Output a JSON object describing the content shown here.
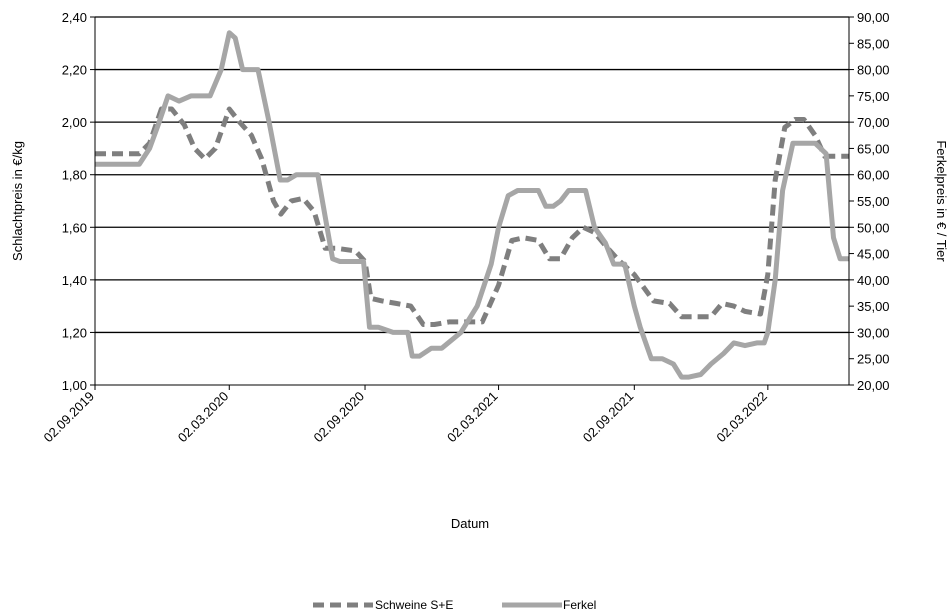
{
  "chart_data": {
    "type": "line",
    "title": "",
    "xlabel": "Datum",
    "ylabel_left": "Schlachtpreis in €/kg",
    "ylabel_right": "Ferkelpreis in € / Tier",
    "x_ticks": [
      "02.09.2019",
      "02.03.2020",
      "02.09.2020",
      "02.03.2021",
      "02.09.2021",
      "02.03.2022"
    ],
    "x_range": [
      "2019-09-02",
      "2022-06-20"
    ],
    "y_left": {
      "range": [
        1.0,
        2.4
      ],
      "ticks": [
        "1,00",
        "1,20",
        "1,40",
        "1,60",
        "1,80",
        "2,00",
        "2,20",
        "2,40"
      ],
      "tick_values": [
        1.0,
        1.2,
        1.4,
        1.6,
        1.8,
        2.0,
        2.2,
        2.4
      ]
    },
    "y_right": {
      "range": [
        20,
        90
      ],
      "ticks": [
        "20,00",
        "25,00",
        "30,00",
        "35,00",
        "40,00",
        "45,00",
        "50,00",
        "55,00",
        "60,00",
        "65,00",
        "70,00",
        "75,00",
        "80,00",
        "85,00",
        "90,00"
      ],
      "tick_values": [
        20,
        25,
        30,
        35,
        40,
        45,
        50,
        55,
        60,
        65,
        70,
        75,
        80,
        85,
        90
      ]
    },
    "grid": "horizontal",
    "legend_position": "bottom",
    "series": [
      {
        "name": "Schweine S+E",
        "axis": "left",
        "color": "#7f7f7f",
        "style": "dashed",
        "points": [
          [
            "2019-09-02",
            1.88
          ],
          [
            "2019-11-01",
            1.88
          ],
          [
            "2019-11-15",
            1.92
          ],
          [
            "2019-12-01",
            2.05
          ],
          [
            "2019-12-15",
            2.05
          ],
          [
            "2020-01-01",
            1.99
          ],
          [
            "2020-01-15",
            1.9
          ],
          [
            "2020-01-29",
            1.86
          ],
          [
            "2020-02-12",
            1.9
          ],
          [
            "2020-03-02",
            2.05
          ],
          [
            "2020-03-16",
            2.0
          ],
          [
            "2020-04-01",
            1.95
          ],
          [
            "2020-04-15",
            1.86
          ],
          [
            "2020-05-01",
            1.7
          ],
          [
            "2020-05-11",
            1.65
          ],
          [
            "2020-05-25",
            1.7
          ],
          [
            "2020-06-10",
            1.71
          ],
          [
            "2020-06-25",
            1.66
          ],
          [
            "2020-07-10",
            1.52
          ],
          [
            "2020-07-25",
            1.52
          ],
          [
            "2020-08-20",
            1.51
          ],
          [
            "2020-09-02",
            1.47
          ],
          [
            "2020-09-10",
            1.33
          ],
          [
            "2020-09-25",
            1.32
          ],
          [
            "2020-10-15",
            1.31
          ],
          [
            "2020-11-03",
            1.3
          ],
          [
            "2020-11-20",
            1.23
          ],
          [
            "2020-12-05",
            1.23
          ],
          [
            "2020-12-25",
            1.24
          ],
          [
            "2021-01-15",
            1.24
          ],
          [
            "2021-02-08",
            1.24
          ],
          [
            "2021-03-02",
            1.38
          ],
          [
            "2021-03-20",
            1.55
          ],
          [
            "2021-04-05",
            1.56
          ],
          [
            "2021-04-25",
            1.55
          ],
          [
            "2021-05-10",
            1.48
          ],
          [
            "2021-05-25",
            1.48
          ],
          [
            "2021-06-10",
            1.56
          ],
          [
            "2021-06-25",
            1.6
          ],
          [
            "2021-07-10",
            1.58
          ],
          [
            "2021-07-25",
            1.53
          ],
          [
            "2021-08-10",
            1.48
          ],
          [
            "2021-08-25",
            1.44
          ],
          [
            "2021-09-02",
            1.42
          ],
          [
            "2021-09-15",
            1.37
          ],
          [
            "2021-09-28",
            1.32
          ],
          [
            "2021-10-20",
            1.31
          ],
          [
            "2021-11-05",
            1.26
          ],
          [
            "2021-11-25",
            1.26
          ],
          [
            "2021-12-15",
            1.26
          ],
          [
            "2021-12-30",
            1.31
          ],
          [
            "2022-01-15",
            1.3
          ],
          [
            "2022-01-30",
            1.28
          ],
          [
            "2022-02-20",
            1.27
          ],
          [
            "2022-03-02",
            1.42
          ],
          [
            "2022-03-12",
            1.78
          ],
          [
            "2022-03-25",
            1.98
          ],
          [
            "2022-04-08",
            2.01
          ],
          [
            "2022-04-20",
            2.01
          ],
          [
            "2022-05-05",
            1.95
          ],
          [
            "2022-05-18",
            1.87
          ],
          [
            "2022-06-02",
            1.87
          ],
          [
            "2022-06-20",
            1.87
          ]
        ]
      },
      {
        "name": "Ferkel",
        "axis": "right",
        "color": "#a6a6a6",
        "style": "solid",
        "points": [
          [
            "2019-09-02",
            62
          ],
          [
            "2019-10-15",
            62
          ],
          [
            "2019-11-01",
            62
          ],
          [
            "2019-11-15",
            65
          ],
          [
            "2019-11-28",
            70
          ],
          [
            "2019-12-10",
            75
          ],
          [
            "2019-12-25",
            74
          ],
          [
            "2020-01-10",
            75
          ],
          [
            "2020-02-05",
            75
          ],
          [
            "2020-02-20",
            80
          ],
          [
            "2020-03-02",
            87
          ],
          [
            "2020-03-10",
            86
          ],
          [
            "2020-03-20",
            80
          ],
          [
            "2020-03-30",
            80
          ],
          [
            "2020-04-10",
            80
          ],
          [
            "2020-04-25",
            70
          ],
          [
            "2020-05-10",
            59
          ],
          [
            "2020-05-20",
            59
          ],
          [
            "2020-06-01",
            60
          ],
          [
            "2020-06-15",
            60
          ],
          [
            "2020-06-30",
            60
          ],
          [
            "2020-07-10",
            52
          ],
          [
            "2020-07-20",
            44
          ],
          [
            "2020-07-30",
            43.5
          ],
          [
            "2020-08-31",
            43.5
          ],
          [
            "2020-09-08",
            31
          ],
          [
            "2020-09-20",
            31
          ],
          [
            "2020-10-10",
            30
          ],
          [
            "2020-10-30",
            30
          ],
          [
            "2020-11-05",
            25.5
          ],
          [
            "2020-11-15",
            25.5
          ],
          [
            "2020-12-01",
            27
          ],
          [
            "2020-12-15",
            27
          ],
          [
            "2021-01-10",
            30
          ],
          [
            "2021-02-01",
            35
          ],
          [
            "2021-02-20",
            43
          ],
          [
            "2021-03-02",
            50
          ],
          [
            "2021-03-15",
            56
          ],
          [
            "2021-03-28",
            57
          ],
          [
            "2021-04-10",
            57
          ],
          [
            "2021-04-25",
            57
          ],
          [
            "2021-05-05",
            54
          ],
          [
            "2021-05-15",
            54
          ],
          [
            "2021-05-25",
            55
          ],
          [
            "2021-06-05",
            57
          ],
          [
            "2021-06-15",
            57
          ],
          [
            "2021-06-28",
            57
          ],
          [
            "2021-07-10",
            50
          ],
          [
            "2021-07-25",
            47
          ],
          [
            "2021-08-05",
            43
          ],
          [
            "2021-08-20",
            43
          ],
          [
            "2021-09-02",
            35
          ],
          [
            "2021-09-10",
            31
          ],
          [
            "2021-09-25",
            25
          ],
          [
            "2021-10-10",
            25
          ],
          [
            "2021-10-25",
            24
          ],
          [
            "2021-11-05",
            21.5
          ],
          [
            "2021-11-15",
            21.5
          ],
          [
            "2021-12-01",
            22
          ],
          [
            "2021-12-15",
            24
          ],
          [
            "2022-01-01",
            26
          ],
          [
            "2022-01-15",
            28
          ],
          [
            "2022-01-30",
            27.5
          ],
          [
            "2022-02-15",
            28
          ],
          [
            "2022-02-25",
            28
          ],
          [
            "2022-03-02",
            30
          ],
          [
            "2022-03-12",
            40
          ],
          [
            "2022-03-22",
            57
          ],
          [
            "2022-04-05",
            66
          ],
          [
            "2022-04-20",
            66
          ],
          [
            "2022-05-05",
            66
          ],
          [
            "2022-05-20",
            64
          ],
          [
            "2022-05-30",
            48
          ],
          [
            "2022-06-08",
            44
          ],
          [
            "2022-06-20",
            44
          ]
        ]
      }
    ]
  }
}
